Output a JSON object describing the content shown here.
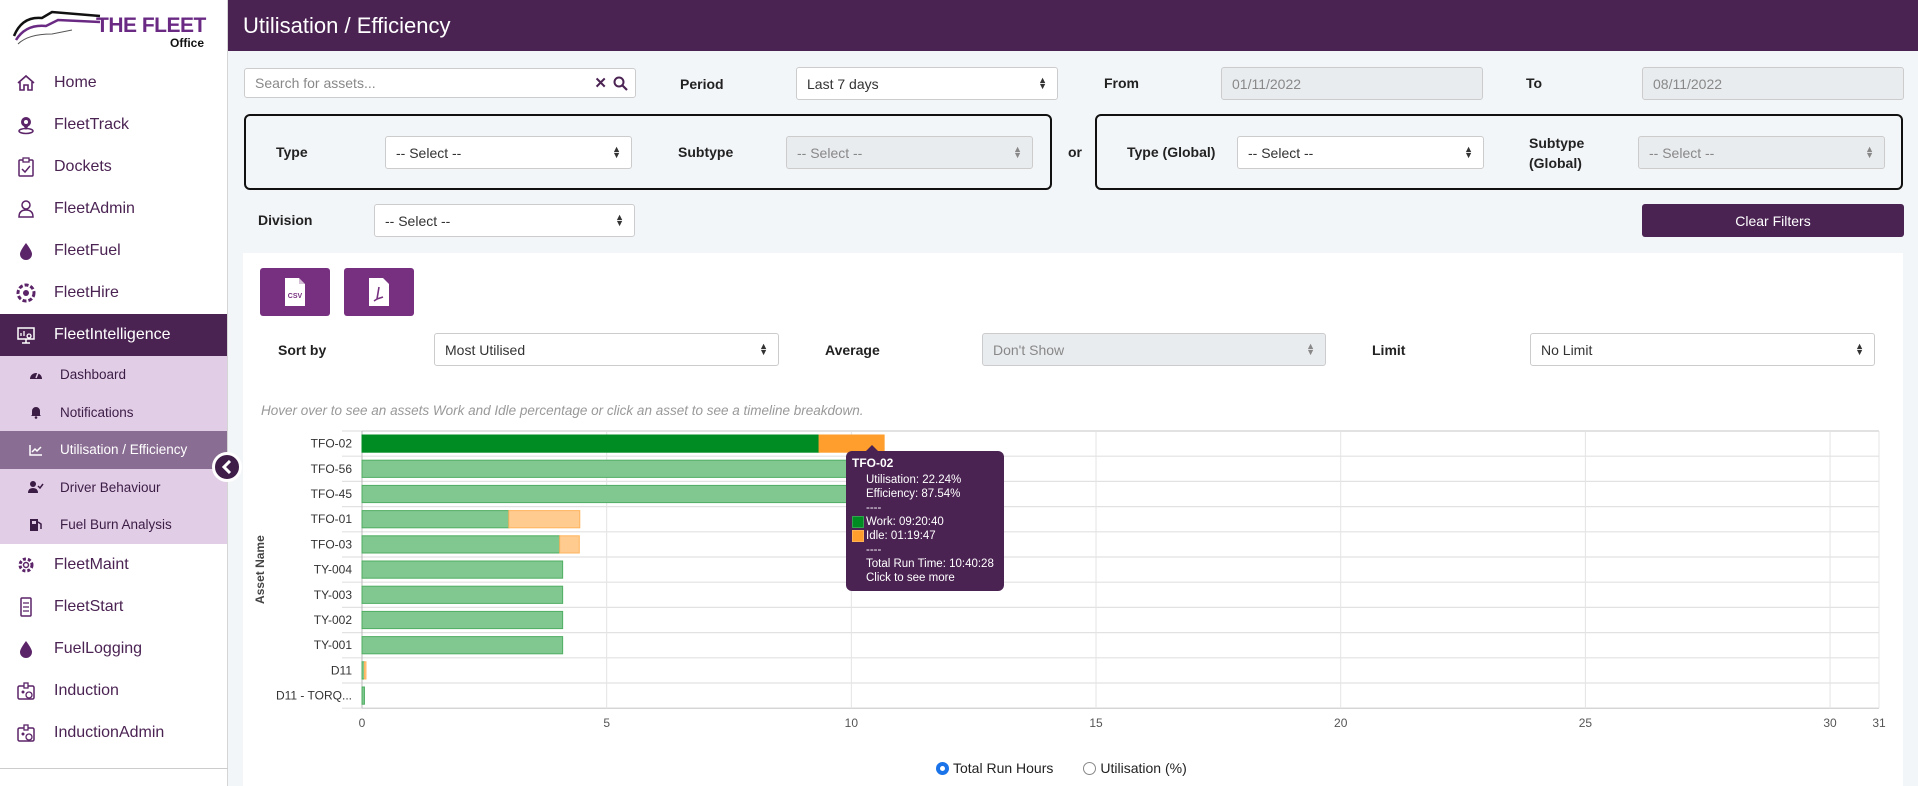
{
  "app": {
    "brand": "THE FLEET",
    "brand_sub": "Office"
  },
  "header": {
    "title": "Utilisation / Efficiency"
  },
  "sidebar": {
    "items": [
      {
        "label": "Home",
        "icon": "home-icon"
      },
      {
        "label": "FleetTrack",
        "icon": "location-pin-icon"
      },
      {
        "label": "Dockets",
        "icon": "clipboard-check-icon"
      },
      {
        "label": "FleetAdmin",
        "icon": "user-admin-icon"
      },
      {
        "label": "FleetFuel",
        "icon": "fuel-drop-icon"
      },
      {
        "label": "FleetHire",
        "icon": "hire-wheel-icon"
      },
      {
        "label": "FleetIntelligence",
        "icon": "monitor-chart-icon",
        "active": true
      }
    ],
    "subitems": [
      {
        "label": "Dashboard",
        "icon": "gauge-icon"
      },
      {
        "label": "Notifications",
        "icon": "bell-icon"
      },
      {
        "label": "Utilisation / Efficiency",
        "icon": "line-chart-icon",
        "active": true
      },
      {
        "label": "Driver Behaviour",
        "icon": "user-check-icon"
      },
      {
        "label": "Fuel Burn Analysis",
        "icon": "fuel-pump-icon"
      }
    ],
    "items_after": [
      {
        "label": "FleetMaint",
        "icon": "gear-wrench-icon"
      },
      {
        "label": "FleetStart",
        "icon": "mobile-checklist-icon"
      },
      {
        "label": "FuelLogging",
        "icon": "fuel-drop-icon"
      },
      {
        "label": "Induction",
        "icon": "id-badge-icon"
      },
      {
        "label": "InductionAdmin",
        "icon": "id-badge-icon"
      }
    ]
  },
  "filters": {
    "search": {
      "placeholder": "Search for assets...",
      "value": ""
    },
    "period": {
      "label": "Period",
      "value": "Last 7 days"
    },
    "from": {
      "label": "From",
      "value": "01/11/2022"
    },
    "to": {
      "label": "To",
      "value": "08/11/2022"
    },
    "type": {
      "label": "Type",
      "value": "-- Select --"
    },
    "subtype": {
      "label": "Subtype",
      "value": "-- Select --"
    },
    "or_label": "or",
    "type_global": {
      "label": "Type (Global)",
      "value": "-- Select --"
    },
    "subtype_global": {
      "label_line1": "Subtype",
      "label_line2": "(Global)",
      "value": "-- Select --"
    },
    "division": {
      "label": "Division",
      "value": "-- Select --"
    },
    "clear_label": "Clear Filters"
  },
  "panel": {
    "export_csv": "CSV",
    "sort_by": {
      "label": "Sort by",
      "value": "Most Utilised"
    },
    "average": {
      "label": "Average",
      "value": "Don't Show"
    },
    "limit": {
      "label": "Limit",
      "value": "No Limit"
    },
    "hint": "Hover over to see an assets Work and Idle percentage or click an asset to see a timeline breakdown."
  },
  "tooltip": {
    "title": "TFO-02",
    "utilisation": "Utilisation: 22.24%",
    "efficiency": "Efficiency: 87.54%",
    "sep": "----",
    "work": "Work: 09:20:40",
    "idle": "Idle: 01:19:47",
    "total": "Total Run Time: 10:40:28",
    "cta": "Click to see more"
  },
  "radios": {
    "options": [
      {
        "label": "Total Run Hours",
        "checked": true
      },
      {
        "label": "Utilisation (%)",
        "checked": false
      }
    ]
  },
  "colors": {
    "brand": "#4b2353",
    "accent": "#77307f",
    "work": "#008c23",
    "work_light": "#80c790",
    "idle": "#ff9e2c",
    "idle_light": "#ffcb8f"
  },
  "chart_data": {
    "type": "bar",
    "orientation": "horizontal",
    "stacked": true,
    "ylabel": "Asset Name",
    "xlabel": "",
    "xlim": [
      0,
      31
    ],
    "xticks": [
      0,
      5,
      10,
      15,
      20,
      25,
      30,
      31
    ],
    "grid": true,
    "categories": [
      "TFO-02",
      "TFO-56",
      "TFO-45",
      "TFO-01",
      "TFO-03",
      "TY-004",
      "TY-003",
      "TY-002",
      "TY-001",
      "D11",
      "D11 - TORQ..."
    ],
    "series": [
      {
        "name": "Work",
        "values": [
          9.34,
          10.3,
          10.3,
          3.0,
          4.04,
          4.1,
          4.1,
          4.1,
          4.1,
          0.05,
          0.05
        ]
      },
      {
        "name": "Idle",
        "values": [
          1.33,
          0,
          0,
          1.45,
          0.4,
          0,
          0,
          0,
          0,
          0.02,
          0
        ]
      }
    ],
    "highlighted": "TFO-02"
  }
}
